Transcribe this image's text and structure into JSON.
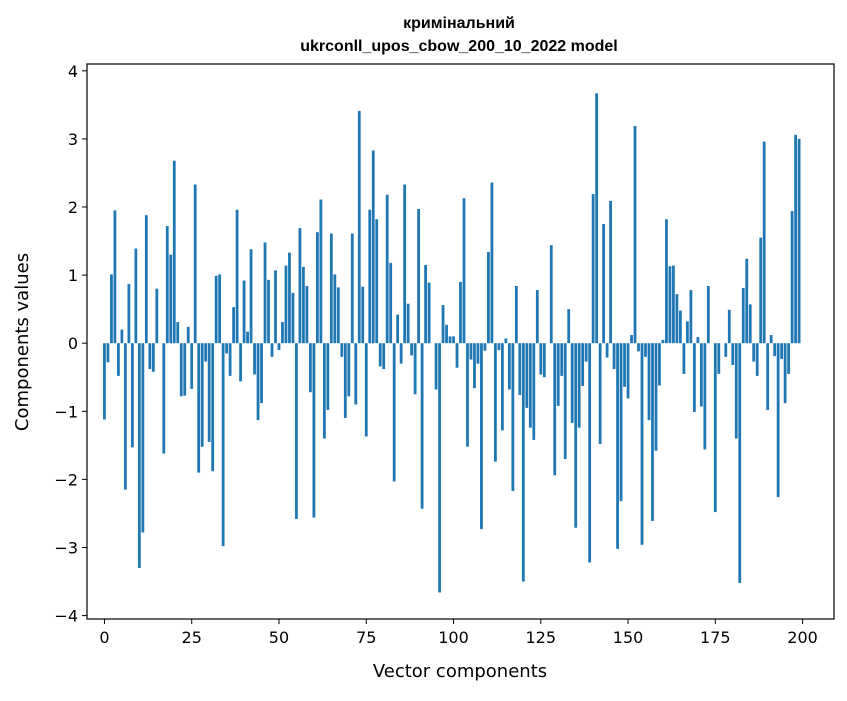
{
  "chart_data": {
    "type": "bar",
    "title_line1": "кримінальний",
    "title_line2": "ukrconll_upos_cbow_200_10_2022 model",
    "xlabel": "Vector components",
    "ylabel": "Components values",
    "xlim": [
      -5,
      209
    ],
    "ylim": [
      -4.05,
      4.1
    ],
    "xticks": [
      0,
      25,
      50,
      75,
      100,
      125,
      150,
      175,
      200
    ],
    "yticks": [
      -4,
      -3,
      -2,
      -1,
      0,
      1,
      2,
      3,
      4
    ],
    "ytick_labels": [
      "−4",
      "−3",
      "−2",
      "−1",
      "0",
      "1",
      "2",
      "3",
      "4"
    ],
    "bar_color": "#1f77b4",
    "values": [
      -1.12,
      -0.28,
      1.01,
      1.95,
      -0.48,
      0.2,
      -2.15,
      0.87,
      -1.53,
      1.39,
      -3.3,
      -2.78,
      1.88,
      -0.38,
      -0.42,
      0.8,
      0.0,
      -1.62,
      1.72,
      1.3,
      2.68,
      0.31,
      -0.78,
      -0.77,
      0.24,
      -0.67,
      2.33,
      -1.9,
      -1.52,
      -0.27,
      -1.45,
      -1.88,
      0.99,
      1.01,
      -2.98,
      -0.15,
      -0.48,
      0.53,
      1.96,
      -0.56,
      0.92,
      0.17,
      1.38,
      -0.46,
      -1.13,
      -0.88,
      1.48,
      0.93,
      -0.2,
      1.07,
      -0.1,
      0.31,
      1.14,
      1.33,
      0.74,
      -2.58,
      1.69,
      1.12,
      0.84,
      -0.72,
      -2.56,
      1.63,
      2.11,
      -1.4,
      -0.98,
      1.61,
      1.01,
      0.82,
      -0.2,
      -1.1,
      -0.78,
      1.61,
      -0.9,
      3.41,
      0.83,
      -1.37,
      1.96,
      2.83,
      1.82,
      -0.34,
      -0.38,
      2.18,
      1.18,
      -2.03,
      0.42,
      -0.3,
      2.33,
      0.58,
      -0.18,
      -0.75,
      1.97,
      -2.43,
      1.15,
      0.89,
      0.0,
      -0.68,
      -3.66,
      0.56,
      0.27,
      0.1,
      0.1,
      -0.36,
      0.9,
      2.13,
      -1.52,
      -0.24,
      -0.66,
      -0.3,
      -2.73,
      -0.11,
      1.34,
      2.36,
      -1.74,
      -0.1,
      -1.28,
      0.07,
      -0.68,
      -2.17,
      0.84,
      -0.76,
      -3.5,
      -0.95,
      -1.24,
      -1.42,
      0.78,
      -0.46,
      -0.5,
      0.0,
      1.44,
      -1.94,
      -0.92,
      -0.48,
      -1.7,
      0.5,
      -1.17,
      -2.71,
      -1.24,
      -0.63,
      -0.27,
      -3.22,
      2.19,
      3.67,
      -1.48,
      1.75,
      -0.21,
      2.09,
      -0.38,
      -3.02,
      -2.32,
      -0.64,
      -0.81,
      0.12,
      3.19,
      -0.12,
      -2.96,
      -0.2,
      -1.13,
      -2.61,
      -1.58,
      -0.62,
      0.05,
      1.82,
      1.13,
      1.14,
      0.72,
      0.48,
      -0.45,
      0.32,
      0.78,
      -1.01,
      0.09,
      -0.93,
      -1.56,
      0.84,
      0.0,
      -2.48,
      -0.45,
      0.0,
      -0.2,
      0.49,
      -0.32,
      -1.4,
      -3.52,
      0.81,
      1.24,
      0.57,
      -0.27,
      -0.48,
      1.55,
      2.96,
      -0.98,
      0.12,
      -0.19,
      -2.26,
      -0.23,
      -0.88,
      -0.45,
      1.94,
      3.06,
      3.0
    ]
  }
}
